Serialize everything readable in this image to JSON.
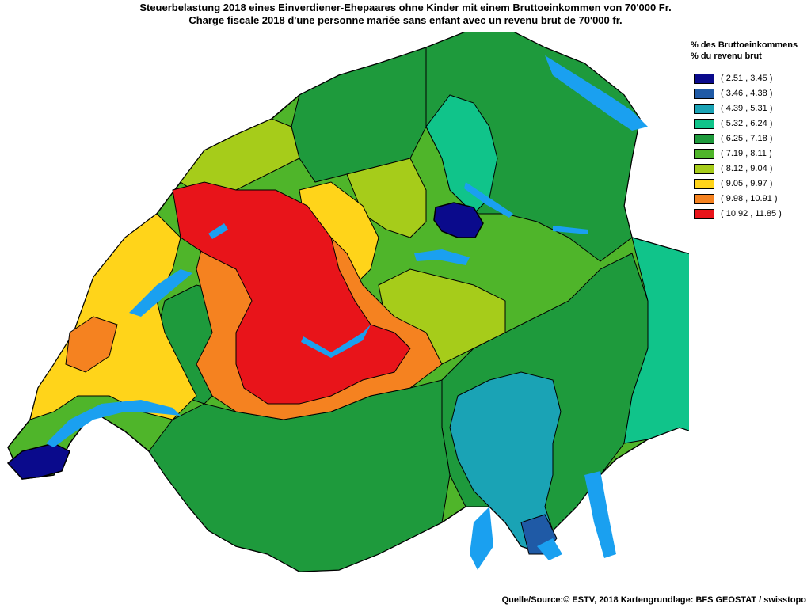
{
  "title_de": "Steuerbelastung 2018 eines Einverdiener-Ehepaares ohne Kinder mit einem Bruttoeinkommen von 70'000 Fr.",
  "title_fr": "Charge fiscale 2018 d'une personne mariée sans enfant avec un revenu brut de 70'000 fr.",
  "legend": {
    "heading_de": "% des Bruttoeinkommens",
    "heading_fr": "% du revenu brut",
    "items": [
      {
        "label": "( 2.51 , 3.45 )",
        "color": "#0a0a8c"
      },
      {
        "label": "( 3.46 , 4.38 )",
        "color": "#1f5aa6"
      },
      {
        "label": "( 4.39 , 5.31 )",
        "color": "#1aa3b5"
      },
      {
        "label": "( 5.32 , 6.24 )",
        "color": "#10c48a"
      },
      {
        "label": "( 6.25 , 7.18 )",
        "color": "#1e9a3c"
      },
      {
        "label": "( 7.19 , 8.11 )",
        "color": "#4fb52a"
      },
      {
        "label": "( 8.12 , 9.04 )",
        "color": "#a6cc1a"
      },
      {
        "label": "( 9.05 , 9.97 )",
        "color": "#ffd41a"
      },
      {
        "label": "( 9.98 , 10.91 )",
        "color": "#f58220"
      },
      {
        "label": "( 10.92 , 11.85 )",
        "color": "#e8141a"
      }
    ]
  },
  "source": "Quelle/Source:© ESTV, 2018 Kartengrundlage: BFS GEOSTAT / swisstopo",
  "water_color": "#1aa0f0"
}
